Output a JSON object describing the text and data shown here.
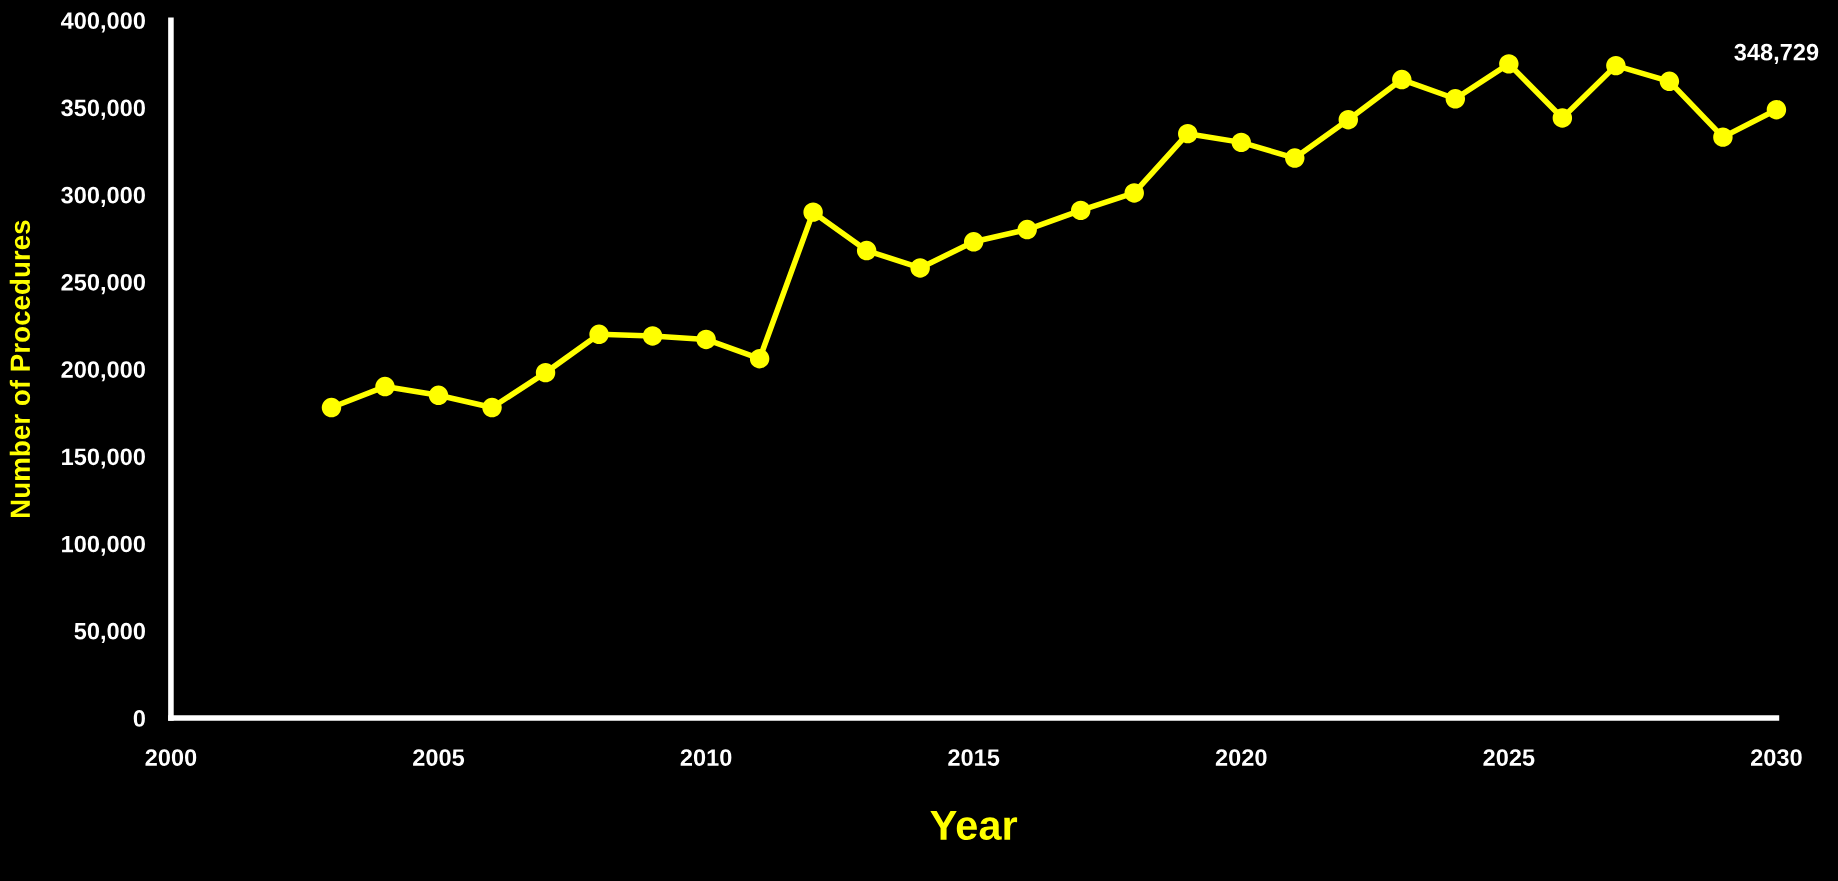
{
  "chart_data": {
    "type": "line",
    "xlabel": "Year",
    "ylabel": "Number of Procedures",
    "x": [
      2003,
      2004,
      2005,
      2006,
      2007,
      2008,
      2009,
      2010,
      2011,
      2012,
      2013,
      2014,
      2015,
      2016,
      2017,
      2018,
      2019,
      2020,
      2021,
      2022,
      2023,
      2024,
      2025,
      2026,
      2027,
      2028,
      2029,
      2030
    ],
    "series": [
      {
        "color": "#ffff00",
        "values": [
          178000,
          190000,
          185000,
          178000,
          198000,
          220000,
          219000,
          217000,
          206000,
          290000,
          268000,
          258000,
          273000,
          280000,
          291000,
          301000,
          335000,
          330000,
          321000,
          343000,
          366000,
          355000,
          375000,
          344000,
          374000,
          365000,
          333000,
          348729
        ],
        "value_labels": [
          null,
          null,
          null,
          null,
          null,
          null,
          null,
          null,
          null,
          null,
          null,
          null,
          null,
          null,
          null,
          null,
          null,
          null,
          null,
          null,
          null,
          null,
          null,
          null,
          null,
          null,
          null,
          "348,729"
        ]
      }
    ],
    "xlim": [
      2000,
      2030
    ],
    "xticks": [
      2000,
      2005,
      2010,
      2015,
      2020,
      2025,
      2030
    ],
    "ylim": [
      0,
      400000
    ],
    "yticks": [
      0,
      {
        "value": 50000,
        "label": "50,000"
      },
      {
        "value": 100000,
        "label": "100,000"
      },
      {
        "value": 150000,
        "label": "150,000"
      },
      {
        "value": 200000,
        "label": "200,000"
      },
      {
        "value": 250000,
        "label": "250,000"
      },
      {
        "value": 300000,
        "label": "300,000"
      },
      {
        "value": 350000,
        "label": "350,000"
      },
      {
        "value": 400000,
        "label": "400,000"
      }
    ],
    "marker": "circle",
    "line_style": "solid",
    "grid": false,
    "legend": false
  }
}
